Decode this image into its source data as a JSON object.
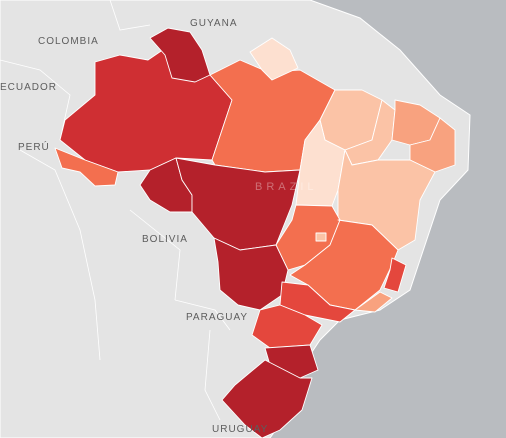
{
  "labels": {
    "guyana": "GUYANA",
    "colombia": "COLOMBIA",
    "ecuador": "ECUADOR",
    "peru": "PERÚ",
    "bolivia": "BOLIVIA",
    "paraguay": "PARAGUAY",
    "uruguay": "URUGUAY",
    "brazil": "BRAZIL"
  },
  "palette": {
    "darkest": "#b4212b",
    "dark": "#cf2f33",
    "medium_dark": "#e4473d",
    "medium": "#f36f4f",
    "medium_light": "#f8a27f",
    "light": "#fbc3a6",
    "lightest": "#fde0d0",
    "land": "#e4e4e4",
    "water": "#b9bcc0"
  }
}
